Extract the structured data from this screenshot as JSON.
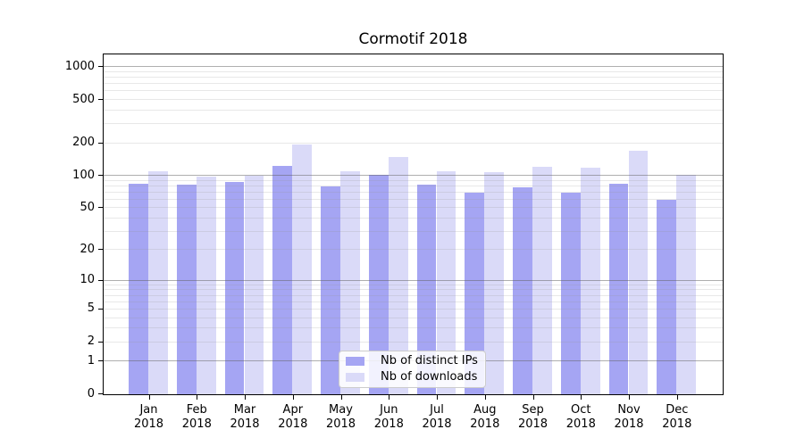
{
  "title": "Cormotif 2018",
  "legend": {
    "items": [
      {
        "label": "Nb of distinct IPs",
        "color": "#a5a5f3"
      },
      {
        "label": "Nb of downloads",
        "color": "#dadaf8"
      }
    ],
    "position": "lower center"
  },
  "colors": {
    "background": "#ffffff",
    "axis": "#000000",
    "major_grid": "rgba(96,96,96,0.5)",
    "minor_grid": "rgba(150,150,150,0.22)"
  },
  "chart_data": {
    "type": "bar",
    "title": "Cormotif 2018",
    "categories": [
      "Jan",
      "Feb",
      "Mar",
      "Apr",
      "May",
      "Jun",
      "Jul",
      "Aug",
      "Sep",
      "Oct",
      "Nov",
      "Dec"
    ],
    "year": "2018",
    "series": [
      {
        "name": "Nb of distinct IPs",
        "color": "#a5a5f3",
        "values": [
          84,
          82,
          87,
          124,
          79,
          102,
          83,
          70,
          78,
          70,
          84,
          60
        ]
      },
      {
        "name": "Nb of downloads",
        "color": "#dadaf8",
        "values": [
          111,
          98,
          100,
          193,
          110,
          150,
          111,
          108,
          120,
          118,
          170,
          103
        ]
      }
    ],
    "xlabel": "",
    "ylabel": "",
    "yscale": "log1p",
    "ylim": [
      0,
      1284
    ],
    "yticks": [
      0,
      1,
      2,
      5,
      10,
      20,
      50,
      100,
      200,
      500,
      1000
    ],
    "grid": {
      "major": [
        1,
        10,
        100,
        1000
      ],
      "minor": [
        2,
        3,
        4,
        5,
        6,
        7,
        8,
        9,
        20,
        30,
        40,
        50,
        60,
        70,
        80,
        90,
        200,
        300,
        400,
        500,
        600,
        700,
        800,
        900
      ],
      "grid_above_bars": true
    },
    "legend_position": "lower center"
  }
}
